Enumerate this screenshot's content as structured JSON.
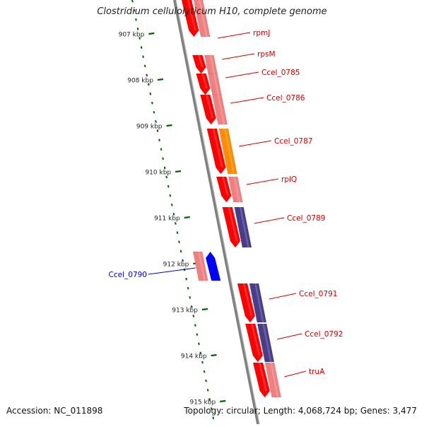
{
  "title": "Clostridium cellulolyticum H10, complete genome",
  "footer": {
    "accession": "Accession: NC_011898",
    "summary": "Topology: circular; Length: 4,068,724 bp; Genes: 3,477"
  },
  "colors": {
    "gene_forward": "#ff0000",
    "gene_pink": "#f08080",
    "gene_orange": "#ff8c00",
    "gene_purple": "#483d8b",
    "gene_reverse": "#0000ff",
    "forward_label": "#cc0000",
    "reverse_label": "#0000cc",
    "tick": "#006400",
    "backbone": "#808080"
  },
  "ruler": {
    "labels": [
      "907 kbp",
      "908 kbp",
      "909 kbp",
      "910 kbp",
      "911 kbp",
      "912 kbp",
      "913 kbp",
      "914 kbp",
      "915 kbp"
    ]
  },
  "genes": [
    {
      "name": "rpmJ",
      "strand": "forward"
    },
    {
      "name": "rpsM",
      "strand": "forward"
    },
    {
      "name": "Ccel_0785",
      "strand": "forward"
    },
    {
      "name": "Ccel_0786",
      "strand": "forward"
    },
    {
      "name": "Ccel_0787",
      "strand": "forward"
    },
    {
      "name": "rplQ",
      "strand": "forward"
    },
    {
      "name": "Ccel_0789",
      "strand": "forward"
    },
    {
      "name": "Ccel_0790",
      "strand": "reverse"
    },
    {
      "name": "Ccel_0791",
      "strand": "forward"
    },
    {
      "name": "Ccel_0792",
      "strand": "forward"
    },
    {
      "name": "truA",
      "strand": "forward"
    }
  ]
}
